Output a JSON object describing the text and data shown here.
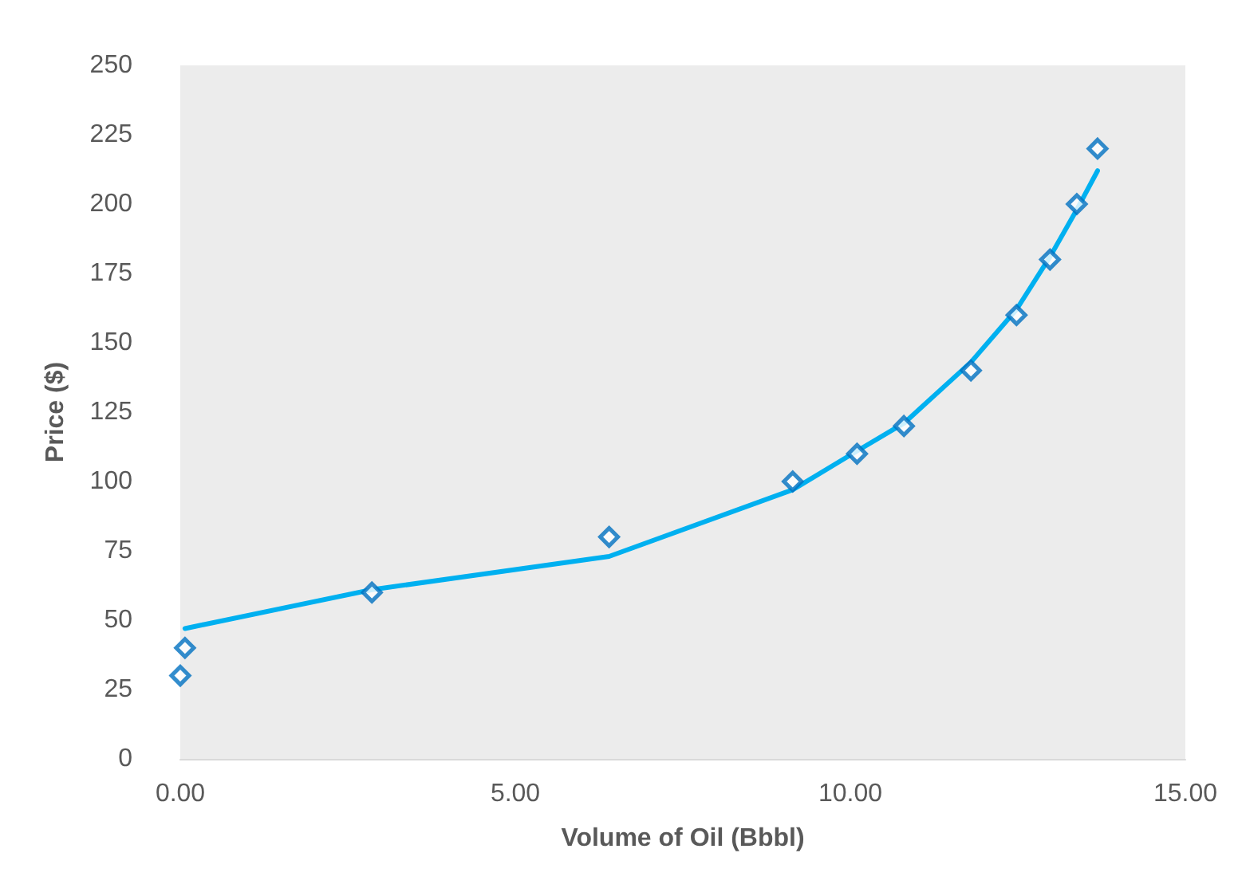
{
  "chart_data": {
    "type": "scatter",
    "xlabel": "Volume of Oil (Bbbl)",
    "ylabel": "Price ($)",
    "x": [
      0,
      0.07,
      2.86,
      6.4,
      9.14,
      10.1,
      10.8,
      11.8,
      12.48,
      12.98,
      13.38,
      13.69
    ],
    "series": [
      {
        "color": "#0070c0",
        "marker": "diamond",
        "values": [
          30,
          40,
          60,
          80,
          100,
          110,
          120,
          140,
          160,
          180,
          200,
          220
        ]
      },
      {
        "type": "line",
        "color": "#00b0f0",
        "marker": "none",
        "x": [
          0.07,
          2.86,
          6.4,
          9.14,
          10.1,
          10.8,
          11.8,
          12.48,
          12.98,
          13.38,
          13.69
        ],
        "values": [
          47,
          61,
          73,
          97,
          111,
          121,
          143,
          162,
          181,
          198,
          212
        ]
      }
    ],
    "xlim": [
      0,
      15
    ],
    "xticks": [
      {
        "value": 0,
        "label": "0.00"
      },
      {
        "value": 5,
        "label": "5.00"
      },
      {
        "value": 10,
        "label": "10.00"
      },
      {
        "value": 15,
        "label": "15.00"
      }
    ],
    "ylim": [
      0,
      250
    ],
    "yticks": [
      0,
      25,
      50,
      75,
      100,
      125,
      150,
      175,
      200,
      225,
      250
    ],
    "grid": false
  }
}
